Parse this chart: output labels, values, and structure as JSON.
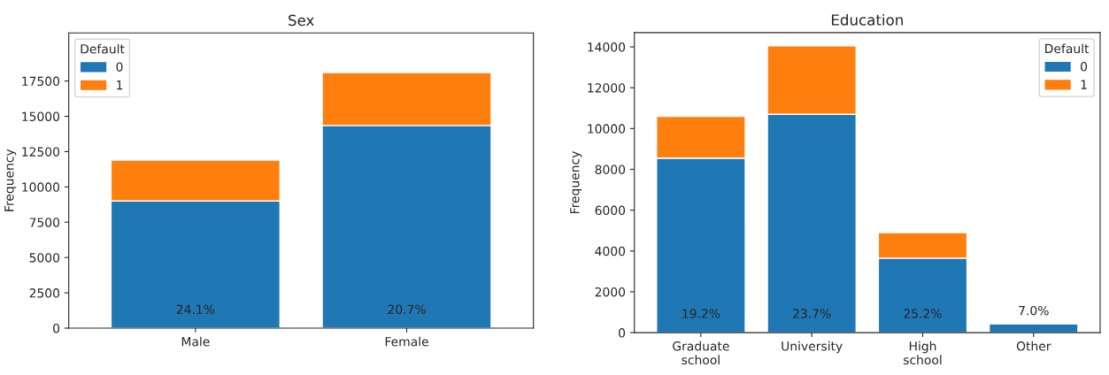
{
  "chart_data": [
    {
      "type": "bar",
      "title": "Sex",
      "ylabel": "Frequency",
      "legend_title": "Default",
      "legend": "top left",
      "stacked": true,
      "grid": false,
      "categories": [
        "Male",
        "Female"
      ],
      "series": [
        {
          "name": "0",
          "color": "#1f77b4",
          "values": [
            9000,
            14350
          ]
        },
        {
          "name": "1",
          "color": "#ff7f0e",
          "values": [
            2900,
            3750
          ]
        }
      ],
      "ylim": [
        0,
        20900
      ],
      "yticks": [
        0,
        2500,
        5000,
        7500,
        10000,
        12500,
        15000,
        17500
      ],
      "annotations": [
        "24.1%",
        "20.7%"
      ]
    },
    {
      "type": "bar",
      "title": "Education",
      "ylabel": "Frequency",
      "legend_title": "Default",
      "legend": "top right",
      "stacked": true,
      "grid": false,
      "categories": [
        "Graduate\nschool",
        "University",
        "High\nschool",
        "Other"
      ],
      "series": [
        {
          "name": "0",
          "color": "#1f77b4",
          "values": [
            8550,
            10700,
            3650,
            440
          ]
        },
        {
          "name": "1",
          "color": "#ff7f0e",
          "values": [
            2050,
            3350,
            1250,
            null
          ]
        }
      ],
      "ylim": [
        0,
        14700
      ],
      "yticks": [
        0,
        2000,
        4000,
        6000,
        8000,
        10000,
        12000,
        14000
      ],
      "annotations": [
        "19.2%",
        "23.7%",
        "25.2%",
        "7.0%"
      ]
    }
  ]
}
